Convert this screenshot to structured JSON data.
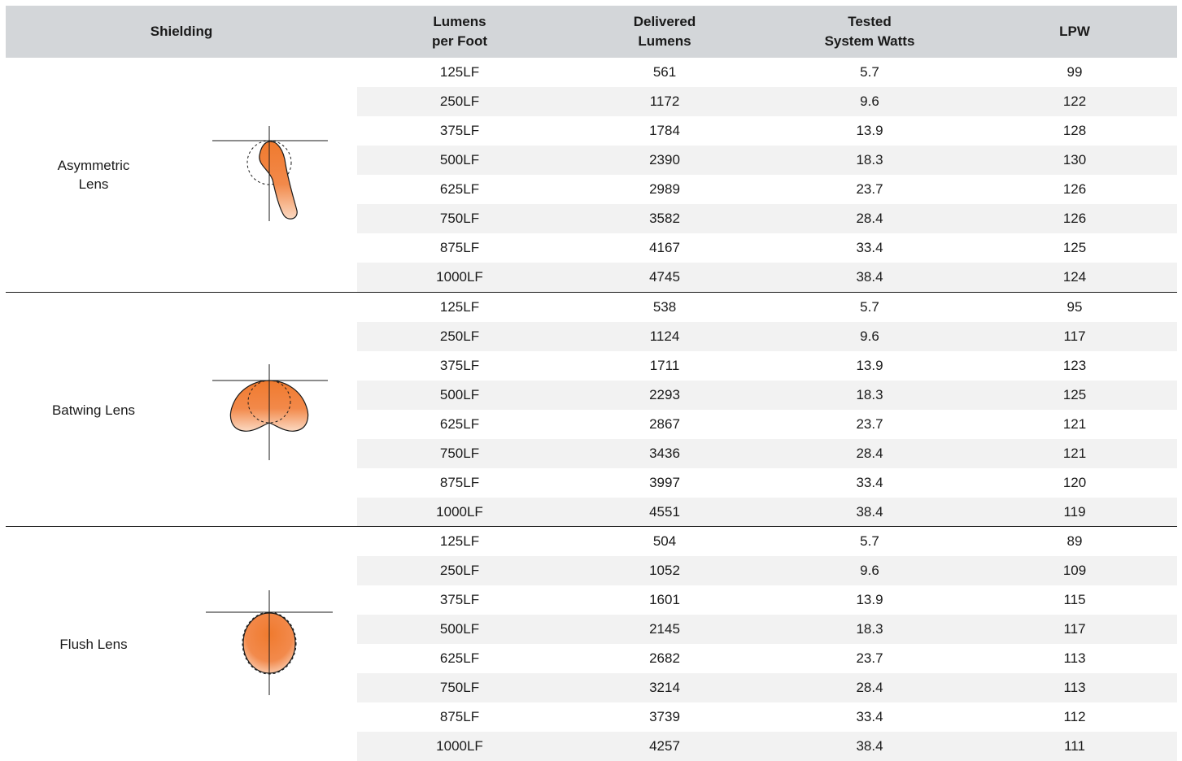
{
  "header": {
    "shielding": "Shielding",
    "lumens_per_foot": [
      "Lumens",
      "per Foot"
    ],
    "delivered_lumens": [
      "Delivered",
      "Lumens"
    ],
    "tested_system_watts": [
      "Tested",
      "System Watts"
    ],
    "lpw": "LPW"
  },
  "colors": {
    "header_bg": "#d3d6d9",
    "stripe": "#f2f2f2",
    "beam_fill": "#f07a2e"
  },
  "groups": [
    {
      "label": [
        "Asymmetric",
        "Lens"
      ],
      "icon": "asymmetric-distribution-icon",
      "rows": [
        {
          "lpf": "125LF",
          "delivered": "561",
          "watts": "5.7",
          "lpw": "99"
        },
        {
          "lpf": "250LF",
          "delivered": "1172",
          "watts": "9.6",
          "lpw": "122"
        },
        {
          "lpf": "375LF",
          "delivered": "1784",
          "watts": "13.9",
          "lpw": "128"
        },
        {
          "lpf": "500LF",
          "delivered": "2390",
          "watts": "18.3",
          "lpw": "130"
        },
        {
          "lpf": "625LF",
          "delivered": "2989",
          "watts": "23.7",
          "lpw": "126"
        },
        {
          "lpf": "750LF",
          "delivered": "3582",
          "watts": "28.4",
          "lpw": "126"
        },
        {
          "lpf": "875LF",
          "delivered": "4167",
          "watts": "33.4",
          "lpw": "125"
        },
        {
          "lpf": "1000LF",
          "delivered": "4745",
          "watts": "38.4",
          "lpw": "124"
        }
      ]
    },
    {
      "label": [
        "Batwing Lens"
      ],
      "icon": "batwing-distribution-icon",
      "rows": [
        {
          "lpf": "125LF",
          "delivered": "538",
          "watts": "5.7",
          "lpw": "95"
        },
        {
          "lpf": "250LF",
          "delivered": "1124",
          "watts": "9.6",
          "lpw": "117"
        },
        {
          "lpf": "375LF",
          "delivered": "1711",
          "watts": "13.9",
          "lpw": "123"
        },
        {
          "lpf": "500LF",
          "delivered": "2293",
          "watts": "18.3",
          "lpw": "125"
        },
        {
          "lpf": "625LF",
          "delivered": "2867",
          "watts": "23.7",
          "lpw": "121"
        },
        {
          "lpf": "750LF",
          "delivered": "3436",
          "watts": "28.4",
          "lpw": "121"
        },
        {
          "lpf": "875LF",
          "delivered": "3997",
          "watts": "33.4",
          "lpw": "120"
        },
        {
          "lpf": "1000LF",
          "delivered": "4551",
          "watts": "38.4",
          "lpw": "119"
        }
      ]
    },
    {
      "label": [
        "Flush Lens"
      ],
      "icon": "flush-distribution-icon",
      "rows": [
        {
          "lpf": "125LF",
          "delivered": "504",
          "watts": "5.7",
          "lpw": "89"
        },
        {
          "lpf": "250LF",
          "delivered": "1052",
          "watts": "9.6",
          "lpw": "109"
        },
        {
          "lpf": "375LF",
          "delivered": "1601",
          "watts": "13.9",
          "lpw": "115"
        },
        {
          "lpf": "500LF",
          "delivered": "2145",
          "watts": "18.3",
          "lpw": "117"
        },
        {
          "lpf": "625LF",
          "delivered": "2682",
          "watts": "23.7",
          "lpw": "113"
        },
        {
          "lpf": "750LF",
          "delivered": "3214",
          "watts": "28.4",
          "lpw": "113"
        },
        {
          "lpf": "875LF",
          "delivered": "3739",
          "watts": "33.4",
          "lpw": "112"
        },
        {
          "lpf": "1000LF",
          "delivered": "4257",
          "watts": "38.4",
          "lpw": "111"
        }
      ]
    }
  ]
}
